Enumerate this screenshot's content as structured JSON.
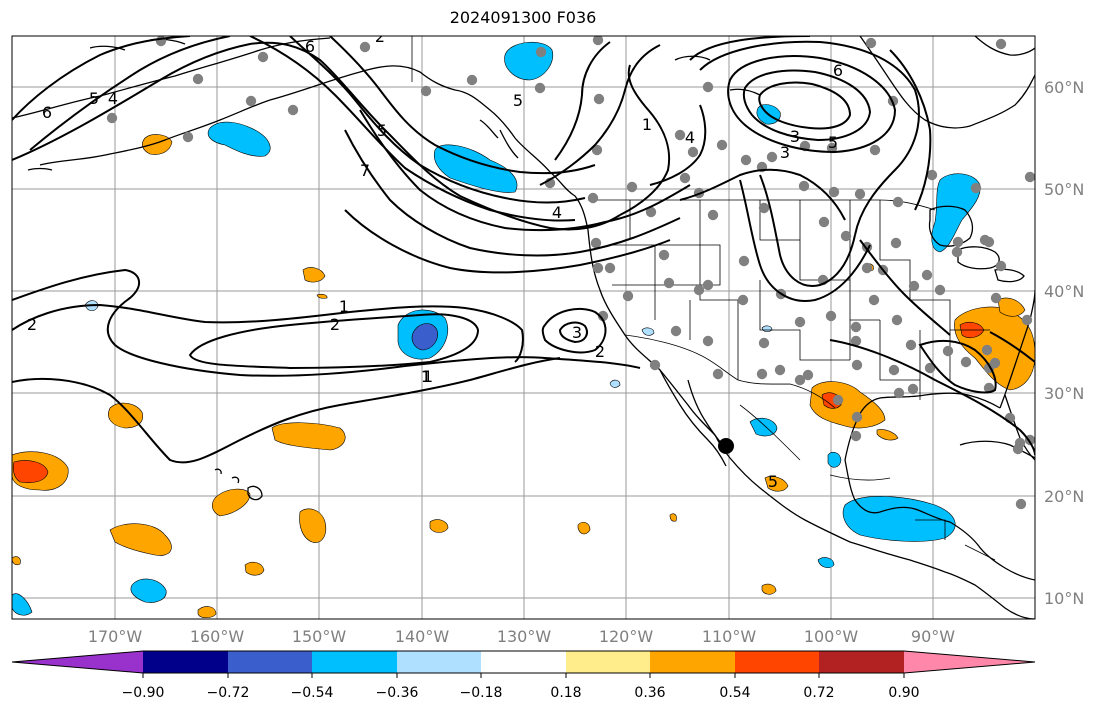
{
  "title": "2024091300 F036",
  "map": {
    "lon_labels": [
      "170°W",
      "160°W",
      "150°W",
      "140°W",
      "130°W",
      "120°W",
      "110°W",
      "100°W",
      "90°W"
    ],
    "lat_labels": [
      "60°N",
      "50°N",
      "40°N",
      "30°N",
      "20°N",
      "10°N"
    ],
    "contour_labels": [
      "6",
      "5",
      "4",
      "6",
      "5",
      "7",
      "5",
      "1",
      "2",
      "1",
      "2",
      "3",
      "2",
      "1",
      "4",
      "3",
      "3",
      "5",
      "6",
      "4",
      "5",
      "2",
      "1"
    ],
    "colors": {
      "land_border": "#000000",
      "gridline": "#808080",
      "station_dot": "#808080"
    }
  },
  "colorbar": {
    "ticks": [
      "−0.90",
      "−0.72",
      "−0.54",
      "−0.36",
      "−0.18",
      "0.18",
      "0.36",
      "0.54",
      "0.72",
      "0.90"
    ],
    "colors": [
      "#9932cc",
      "#00008b",
      "#3a5fcd",
      "#00bfff",
      "#b0e0ff",
      "#ffffff",
      "#ffec8b",
      "#ffa500",
      "#ff4500",
      "#b22222",
      "#ff88aa"
    ]
  }
}
